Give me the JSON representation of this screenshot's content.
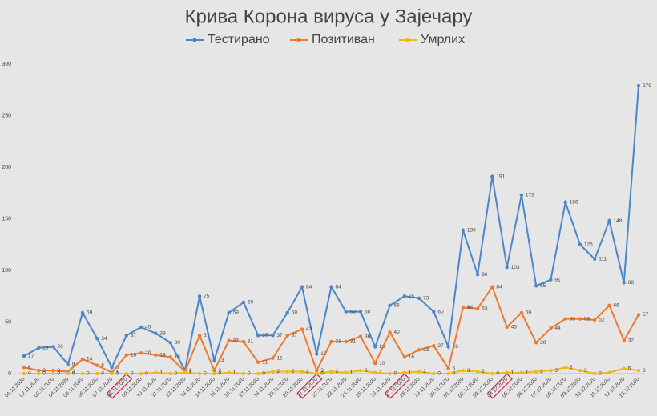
{
  "chart_data": {
    "type": "line",
    "title": "Крива Корона вируса у Зајечару",
    "categories": [
      "01.11.2020",
      "02.11.2020",
      "03.11.2020",
      "04.11.2020",
      "05.11.2020",
      "06.11.2020",
      "07.11.2020",
      "08.11.2020",
      "09.11.2020",
      "10.11.2020",
      "11.11.2020",
      "12.11.2020",
      "13.11.2020",
      "14.11.2020",
      "15.11.2020",
      "16.11.2020",
      "17.11.2020",
      "18.11.2020",
      "19.11.2020",
      "20.11.2020",
      "21.11.2020",
      "22.11.2020",
      "23.11.2020",
      "24.11.2020",
      "25.11.2020",
      "26.11.2020",
      "27.11.2020",
      "28.11.2020",
      "29.11.2020",
      "30.11.2020",
      "01.12.2020",
      "02.12.2020",
      "03.12.2020",
      "04.12.2020",
      "05.12.2020",
      "06.12.2020",
      "07.12.2020",
      "08.12.2020",
      "09.12.2020",
      "10.12.2020",
      "11.12.2020",
      "12.12.2020",
      "13.12.2020"
    ],
    "series": [
      {
        "name": "Тестирано",
        "color": "#4a86c8",
        "values": [
          17,
          25,
          26,
          9,
          59,
          34,
          6,
          37,
          45,
          39,
          30,
          3,
          75,
          13,
          59,
          69,
          37,
          37,
          59,
          84,
          19,
          84,
          60,
          60,
          26,
          66,
          75,
          73,
          60,
          26,
          139,
          96,
          191,
          103,
          173,
          85,
          91,
          166,
          125,
          111,
          148,
          88,
          279
        ]
      },
      {
        "name": "Позитиван",
        "color": "#ec7a2c",
        "values": [
          6,
          3,
          3,
          2,
          14,
          8,
          1,
          18,
          20,
          18,
          16,
          2,
          37,
          3,
          32,
          31,
          11,
          15,
          37,
          43,
          3,
          31,
          31,
          36,
          10,
          40,
          16,
          23,
          27,
          5,
          64,
          63,
          84,
          45,
          59,
          30,
          44,
          53,
          53,
          52,
          66,
          32,
          57
        ]
      },
      {
        "name": "Умрлих",
        "color": "#f2b914",
        "values": [
          0,
          0,
          0,
          0,
          0,
          0,
          0,
          0,
          0,
          1,
          0,
          1,
          0,
          0,
          1,
          0,
          0,
          2,
          2,
          2,
          0,
          2,
          1,
          3,
          1,
          0,
          1,
          2,
          0,
          0,
          3,
          2,
          0,
          1,
          1,
          2,
          3,
          6,
          3,
          0,
          1,
          5,
          3
        ]
      }
    ],
    "ylim": [
      0,
      300
    ],
    "yticks": [
      0,
      50,
      100,
      150,
      200,
      250,
      300
    ],
    "highlighted": [
      7,
      20,
      26,
      33
    ],
    "legend": "top"
  }
}
